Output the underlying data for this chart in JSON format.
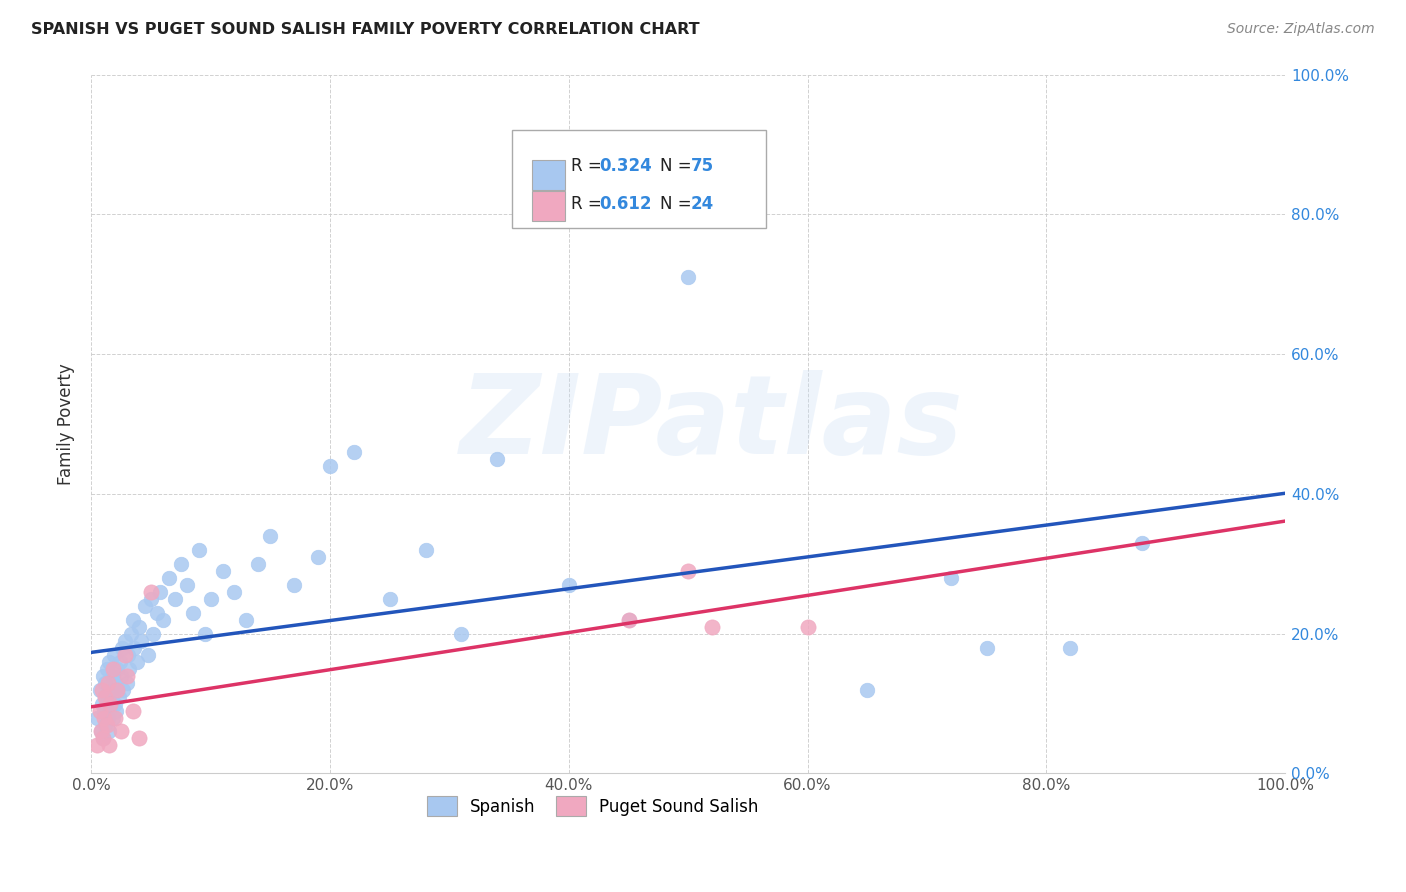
{
  "title": "SPANISH VS PUGET SOUND SALISH FAMILY POVERTY CORRELATION CHART",
  "source": "Source: ZipAtlas.com",
  "ylabel": "Family Poverty",
  "watermark": "ZIPatlas",
  "xlim": [
    0,
    1
  ],
  "ylim": [
    0,
    1
  ],
  "xticks": [
    0.0,
    0.2,
    0.4,
    0.6,
    0.8,
    1.0
  ],
  "xtick_labels": [
    "0.0%",
    "20.0%",
    "40.0%",
    "60.0%",
    "80.0%",
    "100.0%"
  ],
  "ytick_right": [
    0.0,
    0.2,
    0.4,
    0.6,
    0.8,
    1.0
  ],
  "ytick_right_labels": [
    "0.0%",
    "20.0%",
    "40.0%",
    "60.0%",
    "80.0%",
    "100.0%"
  ],
  "spanish_R": 0.324,
  "spanish_N": 75,
  "salish_R": 0.612,
  "salish_N": 24,
  "spanish_color": "#a8c8f0",
  "salish_color": "#f0a8c0",
  "spanish_line_color": "#2255bb",
  "salish_line_color": "#dd3366",
  "background_color": "#ffffff",
  "grid_color": "#cccccc",
  "title_color": "#222222",
  "legend_text_color": "#222222",
  "legend_val_color": "#3388dd",
  "spanish_x": [
    0.005,
    0.007,
    0.008,
    0.009,
    0.01,
    0.01,
    0.011,
    0.012,
    0.012,
    0.013,
    0.013,
    0.014,
    0.015,
    0.015,
    0.016,
    0.017,
    0.018,
    0.018,
    0.019,
    0.02,
    0.02,
    0.021,
    0.022,
    0.022,
    0.023,
    0.024,
    0.025,
    0.026,
    0.027,
    0.028,
    0.03,
    0.031,
    0.032,
    0.033,
    0.035,
    0.036,
    0.038,
    0.04,
    0.042,
    0.045,
    0.048,
    0.05,
    0.052,
    0.055,
    0.058,
    0.06,
    0.065,
    0.07,
    0.075,
    0.08,
    0.085,
    0.09,
    0.095,
    0.1,
    0.11,
    0.12,
    0.13,
    0.14,
    0.15,
    0.17,
    0.19,
    0.2,
    0.22,
    0.25,
    0.28,
    0.31,
    0.34,
    0.4,
    0.45,
    0.5,
    0.65,
    0.72,
    0.75,
    0.82,
    0.88
  ],
  "spanish_y": [
    0.08,
    0.12,
    0.06,
    0.1,
    0.05,
    0.14,
    0.09,
    0.13,
    0.07,
    0.11,
    0.15,
    0.08,
    0.16,
    0.06,
    0.12,
    0.1,
    0.14,
    0.08,
    0.17,
    0.1,
    0.13,
    0.09,
    0.15,
    0.12,
    0.11,
    0.16,
    0.14,
    0.18,
    0.12,
    0.19,
    0.13,
    0.17,
    0.15,
    0.2,
    0.22,
    0.18,
    0.16,
    0.21,
    0.19,
    0.24,
    0.17,
    0.25,
    0.2,
    0.23,
    0.26,
    0.22,
    0.28,
    0.25,
    0.3,
    0.27,
    0.23,
    0.32,
    0.2,
    0.25,
    0.29,
    0.26,
    0.22,
    0.3,
    0.34,
    0.27,
    0.31,
    0.44,
    0.46,
    0.25,
    0.32,
    0.2,
    0.45,
    0.27,
    0.22,
    0.71,
    0.12,
    0.28,
    0.18,
    0.18,
    0.33
  ],
  "salish_x": [
    0.005,
    0.007,
    0.008,
    0.009,
    0.01,
    0.011,
    0.012,
    0.013,
    0.014,
    0.015,
    0.016,
    0.018,
    0.02,
    0.022,
    0.025,
    0.028,
    0.03,
    0.035,
    0.04,
    0.05,
    0.45,
    0.5,
    0.52,
    0.6
  ],
  "salish_y": [
    0.04,
    0.09,
    0.06,
    0.12,
    0.05,
    0.08,
    0.11,
    0.07,
    0.13,
    0.04,
    0.1,
    0.15,
    0.08,
    0.12,
    0.06,
    0.17,
    0.14,
    0.09,
    0.05,
    0.26,
    0.22,
    0.29,
    0.21,
    0.21
  ]
}
